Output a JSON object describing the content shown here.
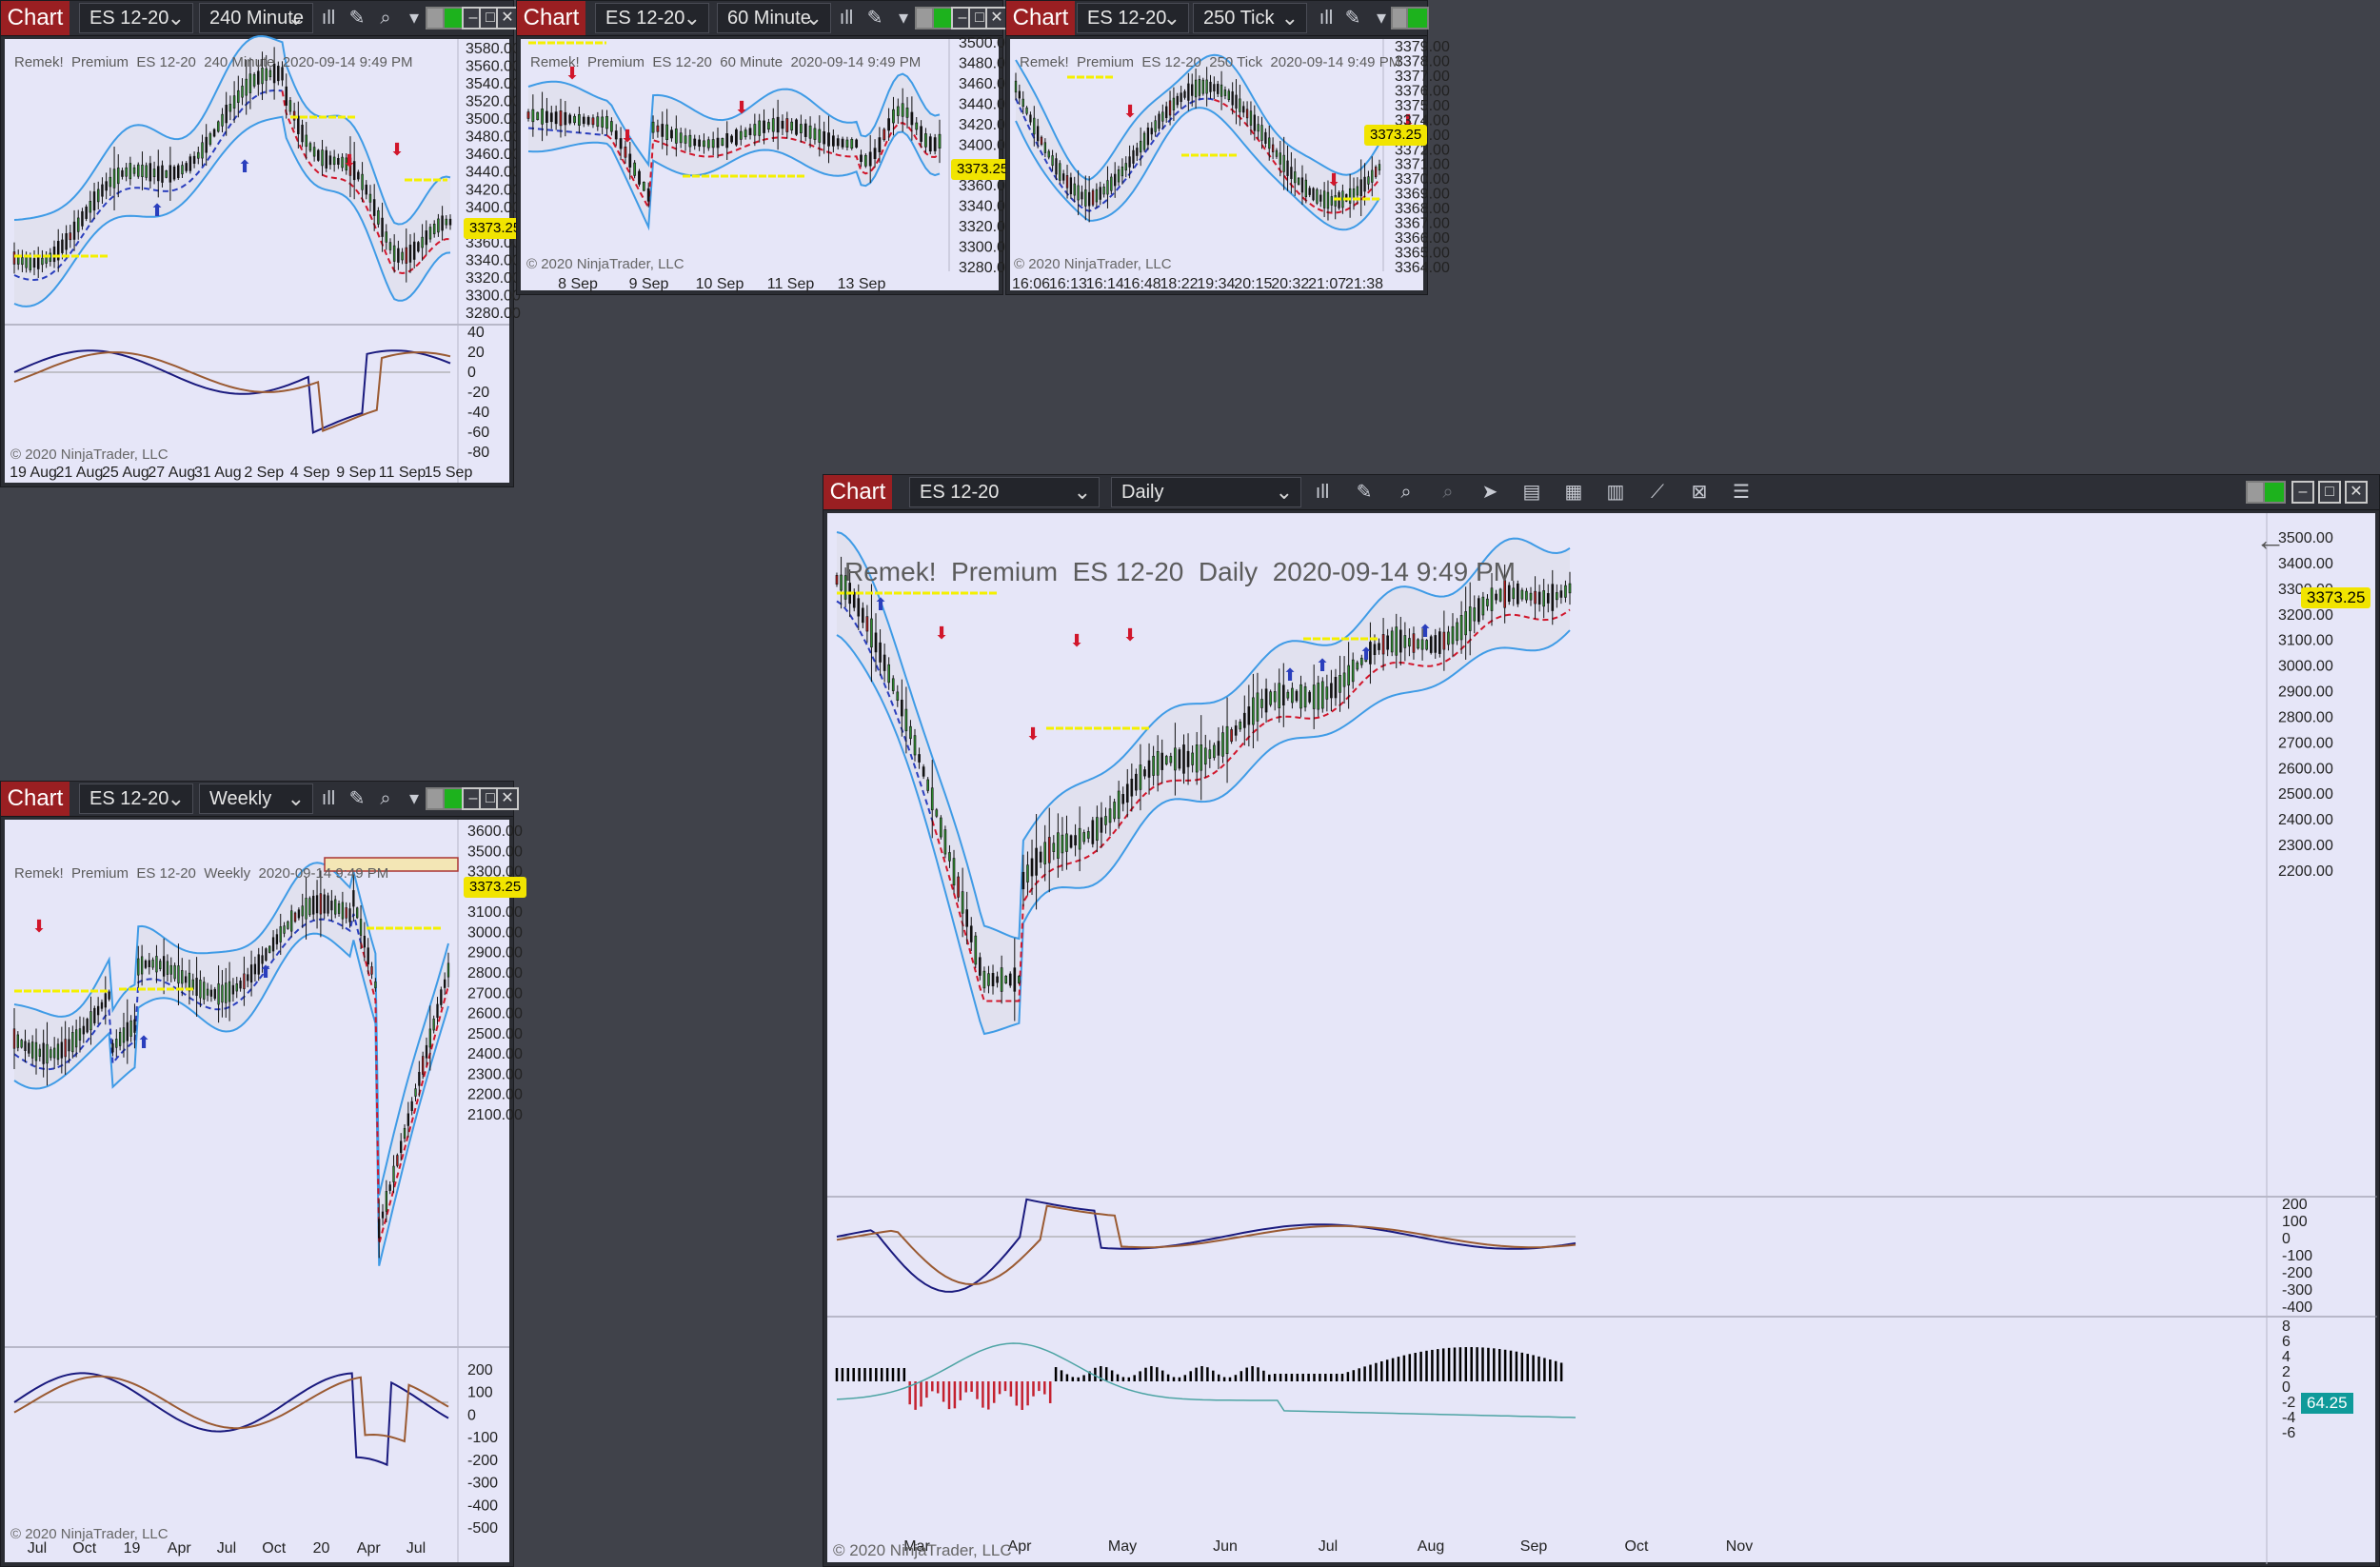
{
  "colors": {
    "panel_bg": "#e6e6f8",
    "band": "#e1e1ef",
    "upper": "#3f9be6",
    "red": "#d1162b",
    "yellow": "#f4f000",
    "blue": "#2a3ebd",
    "osc_fast": "#1a1a7e",
    "osc_slow": "#9a5a32",
    "hist_pos": "#000000",
    "hist_neg": "#c4212f"
  },
  "windows": [
    {
      "id": "w240",
      "label": "Chart",
      "instrument": "ES 12-20",
      "interval": "240 Minute",
      "title": "Remek!  Premium  ES 12-20  240 Minute  2020-09-14 9:49 PM",
      "copyright": "© 2020 NinjaTrader, LLC",
      "price": "3373.25",
      "y_ticks": [
        "3580.00",
        "3560.00",
        "3540.00",
        "3520.00",
        "3500.00",
        "3480.00",
        "3460.00",
        "3440.00",
        "3420.00",
        "3400.00",
        "3380.00",
        "3360.00",
        "3340.00",
        "3320.00",
        "3300.00",
        "3280.00"
      ],
      "osc_ticks": [
        "40",
        "20",
        "0",
        "-20",
        "-40",
        "-60",
        "-80"
      ],
      "x_ticks": [
        "19 Aug",
        "21 Aug",
        "25 Aug",
        "27 Aug",
        "31 Aug",
        "2 Sep",
        "4 Sep",
        "9 Sep",
        "11 Sep",
        "15 Sep"
      ]
    },
    {
      "id": "w60",
      "label": "Chart",
      "instrument": "ES 12-20",
      "interval": "60 Minute",
      "title": "Remek!  Premium  ES 12-20  60 Minute  2020-09-14 9:49 PM",
      "copyright": "© 2020 NinjaTrader, LLC",
      "price": "3373.25",
      "y_ticks": [
        "3500.00",
        "3480.00",
        "3460.00",
        "3440.00",
        "3420.00",
        "3400.00",
        "3380.00",
        "3360.00",
        "3340.00",
        "3320.00",
        "3300.00",
        "3280.00"
      ],
      "x_ticks": [
        "8 Sep",
        "9 Sep",
        "10 Sep",
        "11 Sep",
        "13 Sep"
      ]
    },
    {
      "id": "wtick",
      "label": "Chart",
      "instrument": "ES 12-20",
      "interval": "250 Tick",
      "title": "Remek!  Premium  ES 12-20  250 Tick  2020-09-14 9:49 PM",
      "copyright": "© 2020 NinjaTrader, LLC",
      "price": "3373.25",
      "y_ticks": [
        "3379.00",
        "3378.00",
        "3377.00",
        "3376.00",
        "3375.00",
        "3374.00",
        "3373.00",
        "3372.00",
        "3371.00",
        "3370.00",
        "3369.00",
        "3368.00",
        "3367.00",
        "3366.00",
        "3365.00",
        "3364.00"
      ],
      "x_ticks": [
        "16:06",
        "16:13",
        "16:14",
        "16:48",
        "18:22",
        "19:34",
        "20:15",
        "20:32",
        "21:07",
        "21:38"
      ]
    },
    {
      "id": "wweek",
      "label": "Chart",
      "instrument": "ES 12-20",
      "interval": "Weekly",
      "title": "Remek!  Premium  ES 12-20  Weekly  2020-09-14 9:49 PM",
      "copyright": "© 2020 NinjaTrader, LLC",
      "price": "3373.25",
      "y_ticks": [
        "3600.00",
        "3500.00",
        "3300.00",
        "3200.00",
        "3100.00",
        "3000.00",
        "2900.00",
        "2800.00",
        "2700.00",
        "2600.00",
        "2500.00",
        "2400.00",
        "2300.00",
        "2200.00",
        "2100.00"
      ],
      "osc_ticks": [
        "200",
        "100",
        "0",
        "-100",
        "-200",
        "-300",
        "-400",
        "-500"
      ],
      "x_ticks": [
        "Jul",
        "Oct",
        "19",
        "Apr",
        "Jul",
        "Oct",
        "20",
        "Apr",
        "Jul"
      ]
    },
    {
      "id": "wday",
      "label": "Chart",
      "instrument": "ES 12-20",
      "interval": "Daily",
      "title": "Remek!  Premium  ES 12-20  Daily  2020-09-14 9:49 PM",
      "copyright": "© 2020 NinjaTrader, LLC",
      "price": "3373.25",
      "price2": "64.25",
      "y_ticks": [
        "3500.00",
        "3400.00",
        "3300.00",
        "3200.00",
        "3100.00",
        "3000.00",
        "2900.00",
        "2800.00",
        "2700.00",
        "2600.00",
        "2500.00",
        "2400.00",
        "2300.00",
        "2200.00"
      ],
      "osc_ticks": [
        "200",
        "100",
        "0",
        "-100",
        "-200",
        "-300",
        "-400"
      ],
      "hist_ticks": [
        "8",
        "6",
        "4",
        "2",
        "0",
        "-2",
        "-4",
        "-6"
      ],
      "x_ticks": [
        "Mar",
        "Apr",
        "May",
        "Jun",
        "Jul",
        "Aug",
        "Sep",
        "Oct",
        "Nov"
      ]
    }
  ]
}
